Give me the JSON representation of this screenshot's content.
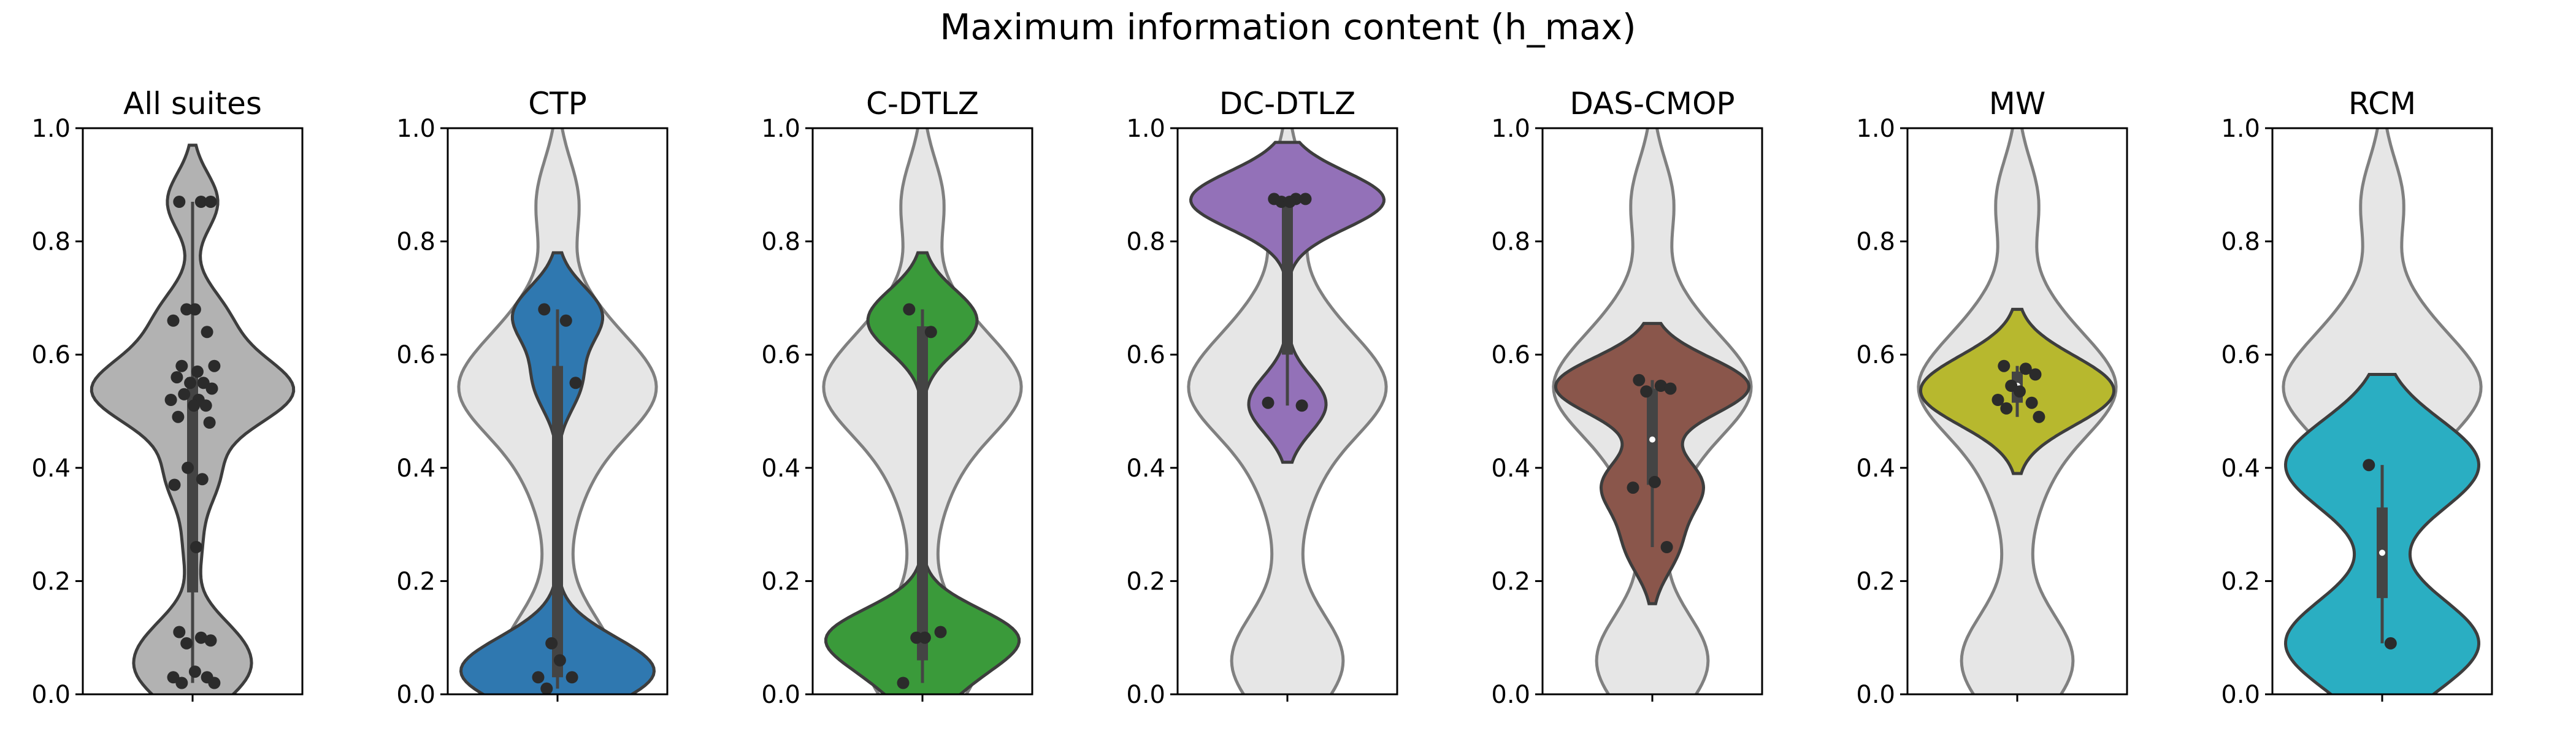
{
  "figure": {
    "title": "Maximum information content (h_max)"
  },
  "chart_data": [
    {
      "type": "violin",
      "title": "All suites",
      "ylim": [
        0,
        1
      ],
      "yticks": [
        "0.0",
        "0.2",
        "0.4",
        "0.6",
        "0.8",
        "1.0"
      ],
      "color": "#b2b2b2",
      "points": [
        0.87,
        0.87,
        0.87,
        0.68,
        0.68,
        0.66,
        0.64,
        0.58,
        0.58,
        0.57,
        0.56,
        0.55,
        0.55,
        0.54,
        0.53,
        0.52,
        0.52,
        0.51,
        0.51,
        0.49,
        0.48,
        0.4,
        0.38,
        0.37,
        0.26,
        0.11,
        0.1,
        0.095,
        0.09,
        0.04,
        0.03,
        0.03,
        0.02,
        0.02
      ],
      "quartiles": [
        0.18,
        0.51,
        0.56
      ],
      "whisker": [
        0.02,
        0.87
      ]
    },
    {
      "type": "violin",
      "title": "CTP",
      "ylim": [
        0,
        1
      ],
      "yticks": [
        "0.0",
        "0.2",
        "0.4",
        "0.6",
        "0.8",
        "1.0"
      ],
      "color": "#2f78b0",
      "points": [
        0.68,
        0.66,
        0.55,
        0.09,
        0.06,
        0.03,
        0.03,
        0.01
      ],
      "quartiles": [
        0.03,
        0.06,
        0.58
      ],
      "whisker": [
        0.01,
        0.68
      ]
    },
    {
      "type": "violin",
      "title": "C-DTLZ",
      "ylim": [
        0,
        1
      ],
      "yticks": [
        "0.0",
        "0.2",
        "0.4",
        "0.6",
        "0.8",
        "1.0"
      ],
      "color": "#3a9a3a",
      "points": [
        0.68,
        0.64,
        0.11,
        0.1,
        0.1,
        0.02
      ],
      "quartiles": [
        0.06,
        0.1,
        0.65
      ],
      "whisker": [
        0.02,
        0.68
      ]
    },
    {
      "type": "violin",
      "title": "DC-DTLZ",
      "ylim": [
        0,
        1
      ],
      "yticks": [
        "0.0",
        "0.2",
        "0.4",
        "0.6",
        "0.8",
        "1.0"
      ],
      "color": "#9371b8",
      "points": [
        0.875,
        0.875,
        0.875,
        0.87,
        0.87,
        0.515,
        0.51
      ],
      "quartiles": [
        0.6,
        0.87,
        0.875
      ],
      "whisker": [
        0.51,
        0.875
      ]
    },
    {
      "type": "violin",
      "title": "DAS-CMOP",
      "ylim": [
        0,
        1
      ],
      "yticks": [
        "0.0",
        "0.2",
        "0.4",
        "0.6",
        "0.8",
        "1.0"
      ],
      "color": "#8a564b",
      "points": [
        0.555,
        0.545,
        0.54,
        0.535,
        0.375,
        0.365,
        0.26
      ],
      "quartiles": [
        0.37,
        0.45,
        0.54
      ],
      "whisker": [
        0.26,
        0.555
      ]
    },
    {
      "type": "violin",
      "title": "MW",
      "ylim": [
        0,
        1
      ],
      "yticks": [
        "0.0",
        "0.2",
        "0.4",
        "0.6",
        "0.8",
        "1.0"
      ],
      "color": "#b7b82e",
      "points": [
        0.58,
        0.575,
        0.565,
        0.545,
        0.535,
        0.52,
        0.515,
        0.505,
        0.49
      ],
      "quartiles": [
        0.515,
        0.545,
        0.57
      ],
      "whisker": [
        0.49,
        0.58
      ]
    },
    {
      "type": "violin",
      "title": "RCM",
      "ylim": [
        0,
        1
      ],
      "yticks": [
        "0.0",
        "0.2",
        "0.4",
        "0.6",
        "0.8",
        "1.0"
      ],
      "color": "#2aaec2",
      "points": [
        0.405,
        0.09
      ],
      "quartiles": [
        0.17,
        0.25,
        0.33
      ],
      "whisker": [
        0.09,
        0.405
      ]
    }
  ]
}
